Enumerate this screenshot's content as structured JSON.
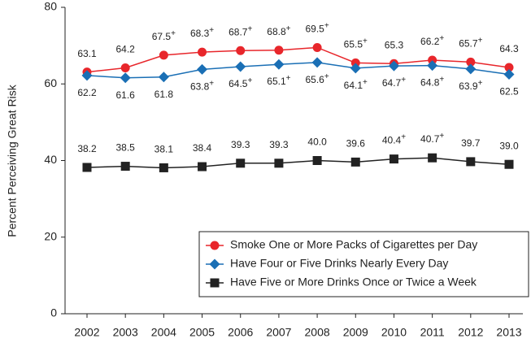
{
  "chart_data": {
    "type": "line",
    "y_label": "Percent Perceiving Great Risk",
    "categories": [
      "2002",
      "2003",
      "2004",
      "2005",
      "2006",
      "2007",
      "2008",
      "2009",
      "2010",
      "2011",
      "2012",
      "2013"
    ],
    "ylim": [
      0,
      80
    ],
    "yticks": [
      0,
      20,
      40,
      60,
      80
    ],
    "grid": false,
    "legend": "lower-right",
    "series": [
      {
        "name": "Smoke One or More Packs of Cigarettes per Day",
        "color": "#e8262b",
        "marker": "circle",
        "label_side": "above",
        "values": [
          63.1,
          64.2,
          67.5,
          68.3,
          68.7,
          68.8,
          69.5,
          65.5,
          65.3,
          66.2,
          65.7,
          64.3
        ],
        "value_labels": [
          "63.1",
          "64.2",
          "67.5+",
          "68.3+",
          "68.7+",
          "68.8+",
          "69.5+",
          "65.5+",
          "65.3",
          "66.2+",
          "65.7+",
          "64.3"
        ]
      },
      {
        "name": "Have Four or Five Drinks Nearly Every Day",
        "color": "#1a6fb5",
        "marker": "diamond",
        "label_side": "below",
        "values": [
          62.2,
          61.6,
          61.8,
          63.8,
          64.5,
          65.1,
          65.6,
          64.1,
          64.7,
          64.8,
          63.9,
          62.5
        ],
        "value_labels": [
          "62.2",
          "61.6",
          "61.8",
          "63.8+",
          "64.5+",
          "65.1+",
          "65.6+",
          "64.1+",
          "64.7+",
          "64.8+",
          "63.9+",
          "62.5"
        ]
      },
      {
        "name": "Have Five or More Drinks Once or Twice a Week",
        "color": "#222222",
        "marker": "square",
        "label_side": "above",
        "values": [
          38.2,
          38.5,
          38.1,
          38.4,
          39.3,
          39.3,
          40.0,
          39.6,
          40.4,
          40.7,
          39.7,
          39.0
        ],
        "value_labels": [
          "38.2",
          "38.5",
          "38.1",
          "38.4",
          "39.3",
          "39.3",
          "40.0",
          "39.6",
          "40.4+",
          "40.7+",
          "39.7",
          "39.0"
        ]
      }
    ]
  }
}
